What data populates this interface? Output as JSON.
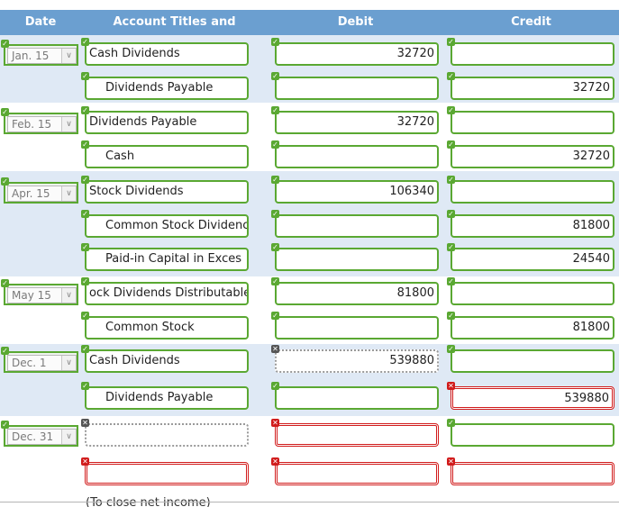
{
  "headers": {
    "date": "Date",
    "account": "Account Titles and Explanation",
    "debit": "Debit",
    "credit": "Credit"
  },
  "status_marks": {
    "ok": "✓",
    "no": "✕",
    "pend": "✕"
  },
  "entries": [
    {
      "date": "Jan. 15",
      "rows": [
        {
          "account": "Cash Dividends",
          "indent": false,
          "debit": "32720",
          "credit": "",
          "a_status": "ok",
          "d_status": "ok",
          "c_status": "ok"
        },
        {
          "account": "Dividends Payable",
          "indent": true,
          "debit": "",
          "credit": "32720",
          "a_status": "ok",
          "d_status": "ok",
          "c_status": "ok"
        }
      ]
    },
    {
      "date": "Feb. 15",
      "rows": [
        {
          "account": "Dividends Payable",
          "indent": false,
          "debit": "32720",
          "credit": "",
          "a_status": "ok",
          "d_status": "ok",
          "c_status": "ok"
        },
        {
          "account": "Cash",
          "indent": true,
          "debit": "",
          "credit": "32720",
          "a_status": "ok",
          "d_status": "ok",
          "c_status": "ok"
        }
      ]
    },
    {
      "date": "Apr. 15",
      "rows": [
        {
          "account": "Stock Dividends",
          "indent": false,
          "debit": "106340",
          "credit": "",
          "a_status": "ok",
          "d_status": "ok",
          "c_status": "ok"
        },
        {
          "account": "Common Stock Dividenc",
          "indent": true,
          "debit": "",
          "credit": "81800",
          "a_status": "ok",
          "d_status": "ok",
          "c_status": "ok"
        },
        {
          "account": "Paid-in Capital in Exces",
          "indent": true,
          "debit": "",
          "credit": "24540",
          "a_status": "ok",
          "d_status": "ok",
          "c_status": "ok"
        }
      ]
    },
    {
      "date": "May 15",
      "rows": [
        {
          "account": "ock Dividends Distributable",
          "indent": false,
          "debit": "81800",
          "credit": "",
          "a_status": "ok",
          "d_status": "ok",
          "c_status": "ok"
        },
        {
          "account": "Common Stock",
          "indent": true,
          "debit": "",
          "credit": "81800",
          "a_status": "ok",
          "d_status": "ok",
          "c_status": "ok"
        }
      ]
    },
    {
      "date": "Dec. 1",
      "rows": [
        {
          "account": "Cash Dividends",
          "indent": false,
          "debit": "539880",
          "credit": "",
          "a_status": "ok",
          "d_status": "pend",
          "c_status": "ok"
        },
        {
          "account": "Dividends Payable",
          "indent": true,
          "debit": "",
          "credit": "539880",
          "a_status": "ok",
          "d_status": "ok",
          "c_status": "no"
        }
      ]
    },
    {
      "date": "Dec. 31",
      "rows": [
        {
          "account": "",
          "indent": false,
          "debit": "",
          "credit": "",
          "a_status": "pend",
          "d_status": "no",
          "c_status": "ok"
        },
        {
          "account": "",
          "indent": false,
          "debit": "",
          "credit": "",
          "a_status": "no",
          "d_status": "no",
          "c_status": "no"
        }
      ]
    }
  ],
  "footer_note": "(To close net income)"
}
